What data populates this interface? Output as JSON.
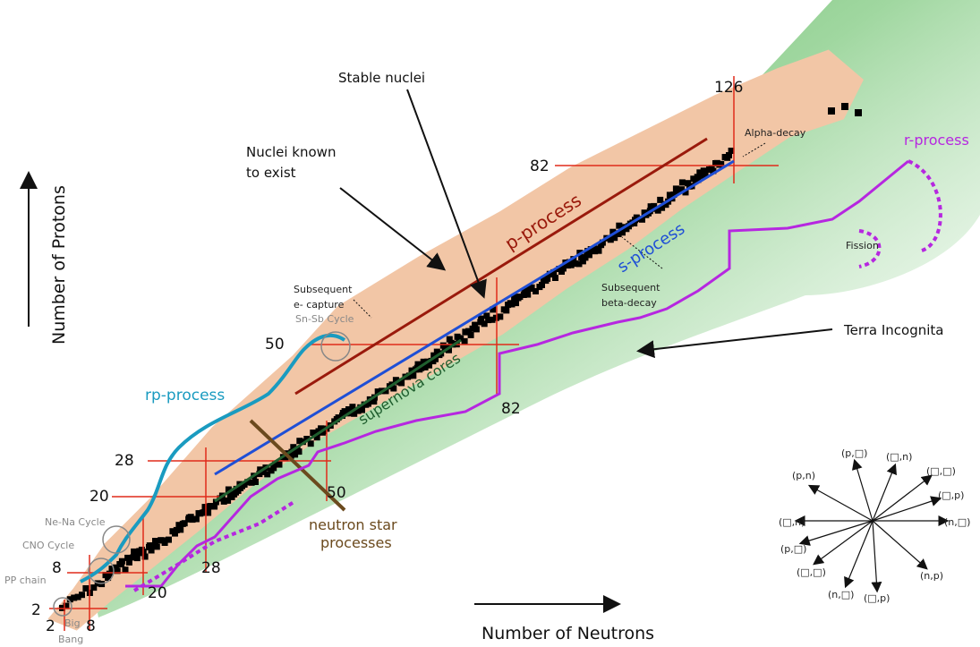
{
  "axes": {
    "y_label": "Number of Protons",
    "x_label": "Number of Neutrons"
  },
  "labels": {
    "stable_nuclei": "Stable nuclei",
    "nuclei_known_line1": "Nuclei known",
    "nuclei_known_line2": "to exist",
    "alpha_decay": "Alpha-decay",
    "r_process": "r-process",
    "fission": "Fission",
    "p_process": "p-process",
    "s_process": "s-process",
    "subsequent_beta_line1": "Subsequent",
    "subsequent_beta_line2": "beta-decay",
    "subsequent_e_line1": "Subsequent",
    "subsequent_e_line2": "e- capture",
    "sn_sb_cycle": "Sn-Sb Cycle",
    "terra_incognita": "Terra Incognita",
    "supernova_cores": "supernova cores",
    "rp_process": "rp-process",
    "neutron_star_line1": "neutron star",
    "neutron_star_line2": "processes",
    "ne_na_cycle": "Ne-Na Cycle",
    "cno_cycle": "CNO Cycle",
    "pp_chain": "PP chain",
    "big_bang_line1": "Big",
    "big_bang_line2": "Bang"
  },
  "magic_numbers": {
    "p126": "126",
    "p82": "82",
    "p50": "50",
    "p28": "28",
    "p20": "20",
    "p8": "8",
    "p2": "2",
    "n82": "82",
    "n50": "50",
    "n28": "28",
    "n20": "20",
    "n8": "8",
    "n2": "2"
  },
  "reactions": {
    "p_g": "(p,□)",
    "a_n": "(□,n)",
    "a_g": "(□,□)",
    "a_p": "(□,p)",
    "n_a": "(n,□)",
    "n_p": "(n,p)",
    "g_p": "(□,p)",
    "n_g": "(n,□)",
    "g_a": "(□,□)",
    "p_a": "(p,□)",
    "g_n": "(□,n)",
    "p_n": "(p,n)"
  },
  "colors": {
    "known_nuclei": "#f2c6a6",
    "stable_nuclei": "#000000",
    "terra_incognita": "#2e9e2e",
    "p_process": "#9a1a0c",
    "s_process": "#1f4fd6",
    "r_process": "#b627e0",
    "rp_process": "#1a9bc0",
    "supernova": "#1f5e2e",
    "neutron_star": "#6b4a1e",
    "magic_lines": "#e02b1a"
  }
}
